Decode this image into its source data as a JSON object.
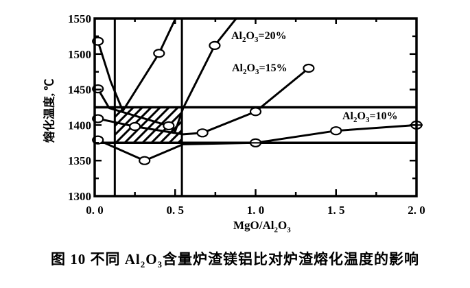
{
  "colors": {
    "ink": "#000000",
    "paper": "#ffffff"
  },
  "formula": {
    "al": "Al",
    "two": "2",
    "o": "O",
    "three": "3"
  },
  "caption": {
    "p1": "图 10  不同 Al",
    "sub1": "2",
    "p2": "O",
    "sub2": "3",
    "p3": "含量炉渣镁铝比对炉渣熔化温度的影响"
  },
  "chart_data": {
    "type": "line",
    "title": "",
    "xlabel_parts": [
      "MgO/Al",
      "2",
      "O",
      "3"
    ],
    "ylabel": "熔化温度, ℃",
    "xlim": [
      0,
      2
    ],
    "ylim": [
      1300,
      1550
    ],
    "grid": false,
    "x_tick_labels": [
      {
        "v": 0.0,
        "t": "0. 0"
      },
      {
        "v": 0.5,
        "t": "0. 5"
      },
      {
        "v": 1.0,
        "t": "1. 0"
      },
      {
        "v": 1.5,
        "t": "1. 5"
      },
      {
        "v": 2.0,
        "t": "2. 0"
      }
    ],
    "x_ticks_major": [
      0.5,
      1.0,
      1.5
    ],
    "x_ticks_minor": [
      0.25,
      0.75,
      1.25,
      1.75
    ],
    "y_tick_labels": [
      {
        "v": 1550,
        "t": "1550"
      },
      {
        "v": 1500,
        "t": "1500"
      },
      {
        "v": 1450,
        "t": "1450"
      },
      {
        "v": 1400,
        "t": "1400"
      },
      {
        "v": 1350,
        "t": "1350"
      },
      {
        "v": 1300,
        "t": "1300"
      }
    ],
    "y_ticks_major": [
      1350,
      1400,
      1450,
      1500
    ],
    "y_ticks_minor": [
      1325,
      1375,
      1425,
      1475,
      1525
    ],
    "reference_lines": {
      "vertical": [
        0.125,
        0.542
      ],
      "horizontal": [
        1375,
        1425
      ]
    },
    "hatched_region": {
      "x": [
        0.125,
        0.542
      ],
      "y": [
        1375,
        1425
      ],
      "style": "diagonal-hatch"
    },
    "series": [
      {
        "name": "unlabeled steep V (leftmost)",
        "eq": "",
        "points": [
          [
            0.02,
            1518
          ],
          [
            0.1,
            1461
          ],
          [
            0.175,
            1420
          ],
          [
            0.4,
            1501
          ],
          [
            0.515,
            1556
          ]
        ],
        "markers": [
          [
            0.02,
            1518
          ],
          [
            0.4,
            1501
          ]
        ],
        "crossed_markers": []
      },
      {
        "name": "Al2O3=20%",
        "eq": "=20%",
        "points": [
          [
            0.02,
            1451
          ],
          [
            0.09,
            1424
          ],
          [
            0.46,
            1399
          ],
          [
            0.5,
            1391
          ],
          [
            0.55,
            1424
          ],
          [
            0.746,
            1512
          ],
          [
            0.89,
            1553
          ]
        ],
        "markers": [
          [
            0.02,
            1451
          ],
          [
            0.46,
            1399
          ],
          [
            0.746,
            1512
          ]
        ],
        "crossed_markers": []
      },
      {
        "name": "Al2O3=15%",
        "eq": "=15%",
        "points": [
          [
            0.02,
            1409
          ],
          [
            0.25,
            1398
          ],
          [
            0.55,
            1387
          ],
          [
            0.67,
            1389
          ],
          [
            1.0,
            1419
          ],
          [
            1.33,
            1480
          ]
        ],
        "markers": [
          [
            0.02,
            1409
          ],
          [
            0.25,
            1398
          ],
          [
            0.67,
            1389
          ],
          [
            1.0,
            1419
          ],
          [
            1.33,
            1480
          ]
        ],
        "crossed_markers": []
      },
      {
        "name": "Al2O3=10%",
        "eq": "=10%",
        "points": [
          [
            0.02,
            1379
          ],
          [
            0.31,
            1350
          ],
          [
            0.55,
            1373
          ],
          [
            1.0,
            1375
          ],
          [
            1.5,
            1392
          ],
          [
            2.0,
            1400
          ]
        ],
        "markers": [
          [
            0.02,
            1379
          ],
          [
            0.31,
            1350
          ],
          [
            1.5,
            1392
          ]
        ],
        "crossed_markers": [
          [
            1.0,
            1375
          ],
          [
            2.0,
            1400
          ]
        ]
      }
    ]
  }
}
